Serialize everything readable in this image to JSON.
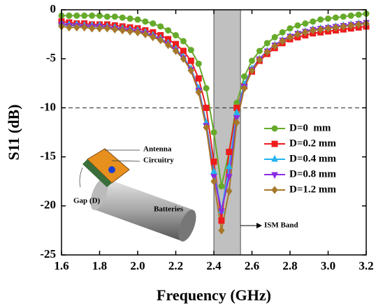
{
  "chart_data": {
    "type": "line",
    "x_label": "Frequency (GHz)",
    "y_label": "S11 (dB)",
    "x": [
      1.6,
      1.64,
      1.68,
      1.72,
      1.76,
      1.8,
      1.84,
      1.88,
      1.92,
      1.96,
      2.0,
      2.04,
      2.08,
      2.12,
      2.16,
      2.2,
      2.24,
      2.28,
      2.32,
      2.36,
      2.4,
      2.44,
      2.48,
      2.52,
      2.56,
      2.6,
      2.64,
      2.68,
      2.72,
      2.76,
      2.8,
      2.84,
      2.88,
      2.92,
      2.96,
      3.0,
      3.04,
      3.08,
      3.12,
      3.16,
      3.2
    ],
    "series": [
      {
        "name": "D=0  mm",
        "color": "#66aa2a",
        "marker": "circle",
        "values": [
          -0.6,
          -0.6,
          -0.6,
          -0.6,
          -0.6,
          -0.6,
          -0.7,
          -0.7,
          -0.8,
          -0.9,
          -1.0,
          -1.2,
          -1.4,
          -1.7,
          -2.1,
          -2.6,
          -3.2,
          -4.1,
          -5.5,
          -8.0,
          -12.5,
          -18.0,
          -14.5,
          -9.5,
          -6.8,
          -5.2,
          -4.2,
          -3.4,
          -2.8,
          -2.3,
          -1.9,
          -1.6,
          -1.4,
          -1.2,
          -1.0,
          -0.9,
          -0.8,
          -0.7,
          -0.6,
          -0.5,
          -0.4
        ]
      },
      {
        "name": "D=0.2 mm",
        "color": "#ee1c1c",
        "marker": "square",
        "values": [
          -1.2,
          -1.3,
          -1.4,
          -1.4,
          -1.5,
          -1.5,
          -1.5,
          -1.6,
          -1.7,
          -1.8,
          -1.9,
          -2.1,
          -2.3,
          -2.6,
          -3.0,
          -3.5,
          -4.2,
          -5.2,
          -7.0,
          -10.0,
          -15.5,
          -21.5,
          -14.5,
          -10.0,
          -7.8,
          -6.3,
          -5.2,
          -4.5,
          -3.9,
          -3.4,
          -3.0,
          -2.8,
          -2.6,
          -2.4,
          -2.3,
          -2.2,
          -2.1,
          -2.0,
          -1.9,
          -1.8,
          -1.7
        ]
      },
      {
        "name": "D=0.4 mm",
        "color": "#22b4ee",
        "marker": "triangle-up",
        "values": [
          -1.4,
          -1.5,
          -1.5,
          -1.6,
          -1.6,
          -1.6,
          -1.7,
          -1.8,
          -1.9,
          -2.0,
          -2.1,
          -2.3,
          -2.6,
          -2.9,
          -3.4,
          -4.0,
          -4.8,
          -6.0,
          -8.0,
          -11.5,
          -16.5,
          -20.5,
          -16.0,
          -10.5,
          -7.6,
          -6.0,
          -5.0,
          -4.2,
          -3.6,
          -3.1,
          -2.7,
          -2.4,
          -2.2,
          -2.0,
          -1.9,
          -1.8,
          -1.7,
          -1.6,
          -1.5,
          -1.4,
          -1.3
        ]
      },
      {
        "name": "D=0.8 mm",
        "color": "#8a2be2",
        "marker": "triangle-down",
        "values": [
          -1.5,
          -1.6,
          -1.6,
          -1.7,
          -1.7,
          -1.7,
          -1.8,
          -1.9,
          -2.0,
          -2.1,
          -2.2,
          -2.4,
          -2.7,
          -3.0,
          -3.5,
          -4.1,
          -4.9,
          -6.1,
          -8.2,
          -11.8,
          -17.0,
          -20.5,
          -17.0,
          -11.0,
          -7.8,
          -6.1,
          -5.0,
          -4.2,
          -3.6,
          -3.1,
          -2.7,
          -2.4,
          -2.2,
          -2.0,
          -1.9,
          -1.8,
          -1.7,
          -1.6,
          -1.5,
          -1.4,
          -1.3
        ]
      },
      {
        "name": "D=1.2 mm",
        "color": "#a6782a",
        "marker": "diamond",
        "values": [
          -1.7,
          -1.8,
          -1.8,
          -1.8,
          -1.9,
          -1.9,
          -1.9,
          -2.0,
          -2.1,
          -2.2,
          -2.3,
          -2.5,
          -2.8,
          -3.1,
          -3.6,
          -4.2,
          -5.0,
          -6.2,
          -8.4,
          -12.0,
          -17.5,
          -22.5,
          -18.5,
          -11.5,
          -8.0,
          -6.2,
          -5.1,
          -4.3,
          -3.7,
          -3.2,
          -2.8,
          -2.5,
          -2.3,
          -2.1,
          -2.0,
          -1.9,
          -1.8,
          -1.7,
          -1.6,
          -1.5,
          -1.4
        ]
      }
    ],
    "xlim": [
      1.6,
      3.2
    ],
    "xticks": [
      1.6,
      1.8,
      {
        "value": 2,
        "label": "2.0"
      },
      2.2,
      2.4,
      2.6,
      2.8,
      {
        "value": 3,
        "label": "3.0"
      },
      3.2
    ],
    "ylim": [
      -25,
      0
    ],
    "yticks": [
      0,
      -5,
      -10,
      -15,
      -20,
      -25
    ],
    "band_x": [
      2.4,
      2.54
    ],
    "band_color": "#c0c0c0",
    "hline": -10,
    "legend": "right",
    "annotations": [
      "ISM Band",
      "Antenna",
      "Circuitry",
      "Gap (D)",
      "Batteries"
    ]
  }
}
